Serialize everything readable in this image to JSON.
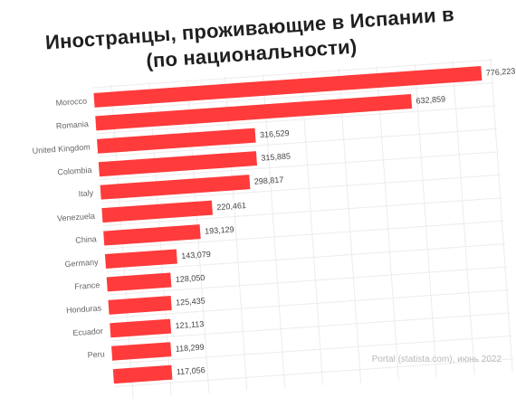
{
  "title_line1": "Иностранцы, проживающие в Испании в",
  "title_line2": "(по национальности)",
  "source_text": "Portal (statista.com), июнь 2022",
  "colors": {
    "bar": "#ff3b3b",
    "grid": "#ececec",
    "text": "#1f1f1f"
  },
  "chart_data": {
    "type": "bar",
    "orientation": "horizontal",
    "title": "Иностранцы, проживающие в Испании в (по национальности)",
    "categories": [
      "Morocco",
      "Romania",
      "United Kingdom",
      "Colombia",
      "Italy",
      "Venezuela",
      "China",
      "Germany",
      "France",
      "Honduras",
      "Ecuador",
      "Peru",
      ""
    ],
    "values": [
      776223,
      632859,
      316529,
      315885,
      298817,
      220461,
      193129,
      143079,
      128050,
      125435,
      121113,
      118299,
      117056
    ],
    "value_labels": [
      "776,223",
      "632,859",
      "316,529",
      "315,885",
      "298,817",
      "220,461",
      "193,129",
      "143,079",
      "128,050",
      "125,435",
      "121,113",
      "118,299",
      "117,056"
    ],
    "xlim": [
      0,
      800000
    ],
    "grid": true,
    "legend": "none"
  }
}
